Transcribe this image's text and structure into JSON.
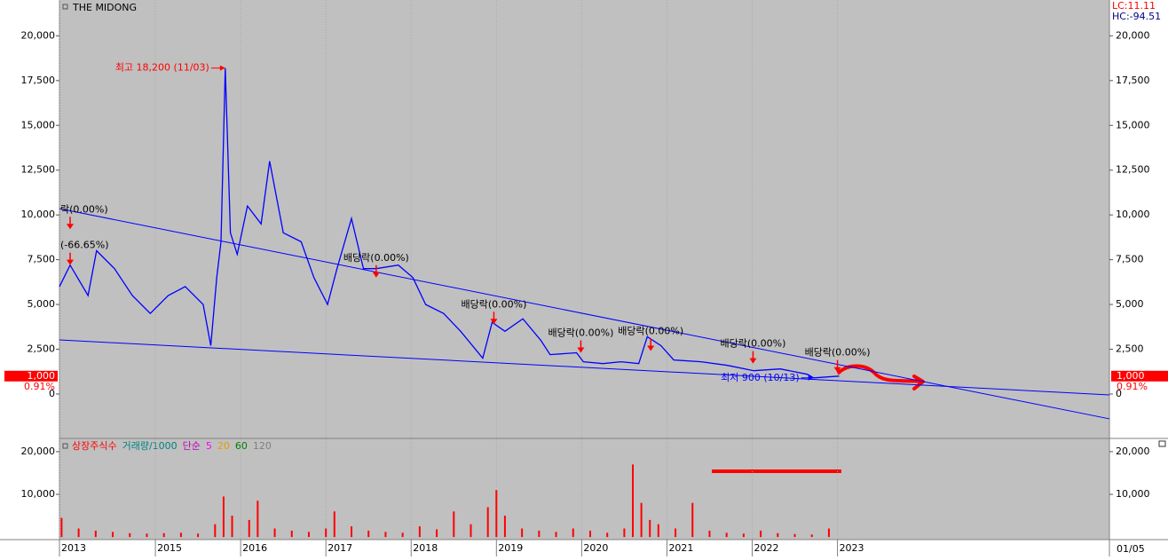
{
  "chart_data": {
    "type": "line",
    "title": "THE MIDONG",
    "indicators": [
      "LC:11.11",
      "HC:-94.51"
    ],
    "x": [
      2013.875,
      2014.0,
      2014.21,
      2014.31,
      2014.52,
      2014.73,
      2014.94,
      2015.15,
      2015.35,
      2015.56,
      2015.65,
      2015.72,
      2015.77,
      2015.82,
      2015.88,
      2015.96,
      2016.08,
      2016.24,
      2016.34,
      2016.5,
      2016.71,
      2016.86,
      2017.02,
      2017.13,
      2017.3,
      2017.44,
      2017.59,
      2017.85,
      2018.02,
      2018.17,
      2018.38,
      2018.58,
      2018.84,
      2018.95,
      2019.1,
      2019.31,
      2019.52,
      2019.63,
      2019.94,
      2020.02,
      2020.25,
      2020.46,
      2020.67,
      2020.77,
      2020.93,
      2021.08,
      2021.4,
      2021.71,
      2022.02,
      2022.33,
      2022.65,
      2022.72,
      2023.02
    ],
    "series": [
      {
        "color": "#0000ff",
        "values": [
          6000,
          7200,
          5500,
          8000,
          7000,
          5500,
          4500,
          5500,
          6000,
          5000,
          2700,
          6500,
          8500,
          18200,
          9000,
          7800,
          10500,
          9500,
          13000,
          9000,
          8500,
          6500,
          5000,
          7000,
          9800,
          7000,
          7000,
          7200,
          6500,
          5000,
          4500,
          3500,
          2000,
          4000,
          3500,
          4200,
          3000,
          2200,
          2300,
          1800,
          1700,
          1800,
          1700,
          3200,
          2700,
          1900,
          1800,
          1600,
          1300,
          1400,
          1100,
          900,
          1000
        ]
      }
    ],
    "xlim": [
      2013.875,
      2026.19
    ],
    "xticks": [
      {
        "value": 2013.875,
        "label": "2013"
      },
      2015,
      2016,
      2017,
      2018,
      2019,
      2020,
      2021,
      2022,
      2023
    ],
    "ylim": [
      -2430,
      22000
    ],
    "yticks": [
      0,
      {
        "value": 2500,
        "label": "2,500"
      },
      {
        "value": 5000,
        "label": "5,000"
      },
      {
        "value": 7500,
        "label": "7,500"
      },
      {
        "value": 10000,
        "label": "10,000"
      },
      {
        "value": 12500,
        "label": "12,500"
      },
      {
        "value": 15000,
        "label": "15,000"
      },
      {
        "value": 17500,
        "label": "17,500"
      },
      {
        "value": 20000,
        "label": "20,000"
      }
    ],
    "grid": true,
    "trendlines": [
      {
        "color": "#0000ff",
        "x": [
          2013.875,
          2026.19
        ],
        "values": [
          10350,
          -1386
        ]
      },
      {
        "color": "#0000ff",
        "x": [
          2013.875,
          2026.19
        ],
        "values": [
          3020,
          -50
        ]
      }
    ],
    "high": {
      "label": "최고 18,200 (11/03)",
      "x": 2015.82,
      "value": 18200
    },
    "low": {
      "label": "최저 900 (10/13)",
      "x": 2022.72,
      "value": 900
    },
    "events": [
      {
        "label": "락(0.00%)",
        "x": 2014.0,
        "value": 9200
      },
      {
        "label": "(-66.65%)",
        "x": 2014.0,
        "value": 7200
      },
      {
        "label": "배당락(0.00%)",
        "x": 2017.59,
        "value": 6500
      },
      {
        "label": "배당락(0.00%)",
        "x": 2018.97,
        "value": 3900
      },
      {
        "label": "배당락(0.00%)",
        "x": 2019.99,
        "value": 2300
      },
      {
        "label": "배당락(0.00%)",
        "x": 2020.81,
        "value": 2400
      },
      {
        "label": "배당락(0.00%)",
        "x": 2022.01,
        "value": 1700
      },
      {
        "label": "배당락(0.00%)",
        "x": 2023.0,
        "value": 1200
      }
    ],
    "last_price": {
      "value": 1000,
      "label": "1,000"
    },
    "last_change": "0.91%",
    "date_label": "01/05",
    "volume": {
      "type": "bar",
      "legend": [
        {
          "name": "상장주식수",
          "color": "#ff0000"
        },
        {
          "name": "거래량/1000",
          "color": "#008080"
        },
        {
          "name": "단순",
          "color": "#c000c0"
        },
        {
          "name": "5",
          "color": "#ff00ff"
        },
        {
          "name": "20",
          "color": "#e0a000"
        },
        {
          "name": "60",
          "color": "#008000"
        },
        {
          "name": "120",
          "color": "#808080"
        }
      ],
      "color": "#ff0000",
      "x": [
        2013.9,
        2014.1,
        2014.3,
        2014.5,
        2014.7,
        2014.9,
        2015.1,
        2015.3,
        2015.5,
        2015.7,
        2015.8,
        2015.9,
        2016.1,
        2016.2,
        2016.4,
        2016.6,
        2016.8,
        2017.0,
        2017.1,
        2017.3,
        2017.5,
        2017.7,
        2017.9,
        2018.1,
        2018.3,
        2018.5,
        2018.7,
        2018.9,
        2019.0,
        2019.1,
        2019.3,
        2019.5,
        2019.7,
        2019.9,
        2020.1,
        2020.3,
        2020.5,
        2020.6,
        2020.7,
        2020.8,
        2020.9,
        2021.1,
        2021.3,
        2021.5,
        2021.7,
        2021.9,
        2022.1,
        2022.3,
        2022.5,
        2022.7,
        2022.9
      ],
      "values": [
        4500,
        2000,
        1500,
        1200,
        900,
        800,
        900,
        1000,
        800,
        3000,
        9500,
        5000,
        4000,
        8500,
        2000,
        1500,
        1200,
        2000,
        6000,
        2500,
        1500,
        1200,
        1000,
        2500,
        1800,
        6000,
        3000,
        7000,
        11000,
        5000,
        2000,
        1500,
        1200,
        2000,
        1500,
        1000,
        2000,
        17000,
        8000,
        4000,
        3000,
        2000,
        8000,
        1500,
        1000,
        800,
        1500,
        900,
        700,
        600,
        2000
      ],
      "ylim": [
        -600,
        22900
      ],
      "yticks": [
        {
          "value": 10000,
          "label": "10,000"
        },
        {
          "value": 20000,
          "label": "20,000"
        }
      ]
    }
  }
}
